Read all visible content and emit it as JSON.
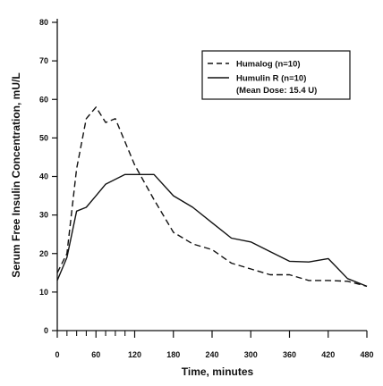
{
  "chart_data": {
    "type": "line",
    "title": "",
    "xlabel": "Time, minutes",
    "ylabel": "Serum Free Insulin Concentration, mU/L",
    "xlim": [
      0,
      480
    ],
    "ylim": [
      0,
      80
    ],
    "x_ticks": [
      0,
      60,
      120,
      180,
      240,
      300,
      360,
      420,
      480
    ],
    "x_minor_ticks": [
      15,
      30,
      45,
      75,
      90,
      105
    ],
    "y_ticks": [
      0,
      10,
      20,
      30,
      40,
      50,
      60,
      70,
      80
    ],
    "grid": false,
    "legend_position": "top-right",
    "series": [
      {
        "name": "Humalog (n=10)",
        "line_style": "dashed",
        "color": "#111111",
        "x": [
          0,
          15,
          30,
          45,
          60,
          75,
          90,
          120,
          150,
          180,
          210,
          240,
          270,
          300,
          330,
          360,
          390,
          420,
          450,
          480
        ],
        "y": [
          15,
          20,
          42,
          55,
          58,
          54,
          55,
          43,
          34,
          25.5,
          22.5,
          21,
          17.5,
          16,
          14.5,
          14.5,
          13,
          13,
          12.8,
          11.5
        ]
      },
      {
        "name": "Humulin R (n=10)",
        "line_style": "solid",
        "color": "#111111",
        "x": [
          0,
          15,
          30,
          45,
          60,
          75,
          105,
          120,
          150,
          180,
          210,
          240,
          270,
          300,
          330,
          360,
          390,
          420,
          450,
          480
        ],
        "y": [
          13,
          19,
          31,
          32,
          35,
          38,
          40.5,
          40.5,
          40.5,
          35,
          32,
          28,
          24,
          23,
          20.5,
          18,
          17.8,
          18.7,
          13.5,
          11.5
        ]
      }
    ],
    "legend_note": "(Mean Dose: 15.4 U)"
  }
}
